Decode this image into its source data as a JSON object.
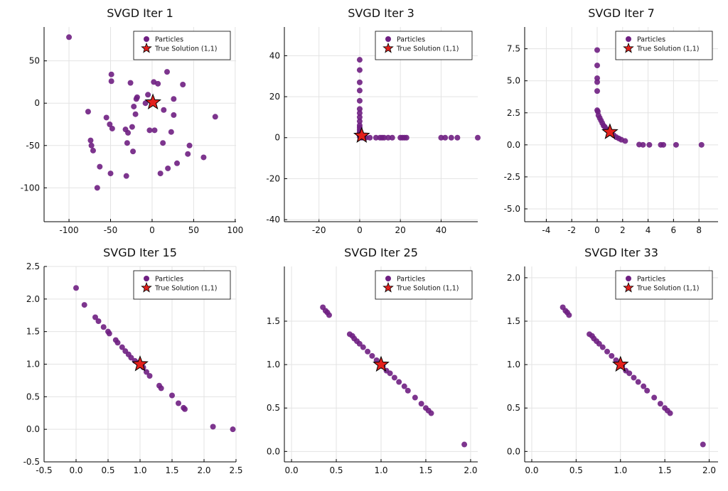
{
  "chart_data": [
    {
      "type": "scatter",
      "title": "SVGD Iter 1",
      "legend": "top-right",
      "grid": true,
      "xlim": [
        -130,
        101
      ],
      "ylim": [
        -140,
        90
      ],
      "xticks": [
        -100,
        -50,
        0,
        50,
        100
      ],
      "yticks": [
        -100,
        -50,
        0,
        50
      ],
      "series": [
        {
          "name": "Particles",
          "color": "#6f1f82",
          "marker": "circle",
          "x": [
            -100,
            -49,
            -49,
            -26,
            18,
            2,
            7,
            37,
            -18,
            -19,
            -5,
            -8,
            14,
            26,
            26,
            -22,
            -20,
            -77,
            -55,
            -51,
            -48,
            -32,
            -29,
            -24,
            -3,
            3,
            23,
            -74,
            -73,
            -71,
            -30,
            -23,
            13,
            45,
            43,
            30,
            19,
            10,
            -50,
            -31,
            -63,
            -66,
            62,
            76
          ],
          "y": [
            78,
            34,
            26,
            24,
            37,
            25,
            23,
            22,
            7,
            5,
            10,
            0,
            -8,
            -14,
            5,
            -4,
            -13,
            -10,
            -17,
            -25,
            -30,
            -31,
            -35,
            -28,
            -32,
            -32,
            -34,
            -44,
            -50,
            -56,
            -47,
            -57,
            -47,
            -50,
            -60,
            -71,
            -77,
            -83,
            -83,
            -86,
            -75,
            -100,
            -64,
            -16
          ]
        },
        {
          "name": "True Solution (1,1)",
          "color": "#e2201c",
          "marker": "star",
          "x": [
            1
          ],
          "y": [
            1
          ]
        }
      ]
    },
    {
      "type": "scatter",
      "title": "SVGD Iter 3",
      "legend": "top-right",
      "grid": true,
      "xlim": [
        -37,
        58
      ],
      "ylim": [
        -41,
        54
      ],
      "xticks": [
        -20,
        0,
        20,
        40
      ],
      "yticks": [
        -40,
        -20,
        0,
        20,
        40
      ],
      "series": [
        {
          "name": "Particles",
          "color": "#6f1f82",
          "marker": "circle",
          "x": [
            0,
            0,
            0,
            0,
            0,
            0,
            0,
            0,
            0,
            0,
            0,
            0,
            0,
            0,
            0,
            0,
            1,
            2,
            3,
            5,
            8,
            10,
            11,
            12,
            14,
            16,
            20,
            21,
            22,
            23,
            40,
            42,
            45,
            48,
            58
          ],
          "y": [
            38,
            33,
            27,
            23,
            18,
            14,
            12,
            10,
            8,
            6,
            5,
            4,
            3,
            2,
            1,
            0.5,
            0,
            0,
            0,
            0,
            0,
            0,
            0,
            0,
            0,
            0,
            0,
            0,
            0,
            0,
            0,
            0,
            0,
            0,
            0
          ]
        },
        {
          "name": "True Solution (1,1)",
          "color": "#e2201c",
          "marker": "star",
          "x": [
            1
          ],
          "y": [
            1
          ]
        }
      ]
    },
    {
      "type": "scatter",
      "title": "SVGD Iter 7",
      "legend": "top-right",
      "grid": true,
      "xlim": [
        -5.7,
        9.5
      ],
      "ylim": [
        -6,
        9.2
      ],
      "xticks": [
        -4,
        -2,
        0,
        2,
        4,
        6,
        8
      ],
      "yticks": [
        {
          "value": -5,
          "label": "-5.0"
        },
        -2.5,
        {
          "value": 0,
          "label": "0.0"
        },
        2.5,
        {
          "value": 5,
          "label": "5.0"
        },
        7.5
      ],
      "series": [
        {
          "name": "Particles",
          "color": "#6f1f82",
          "marker": "circle",
          "x": [
            0,
            0,
            0,
            0,
            0,
            0,
            0.05,
            0.1,
            0.2,
            0.3,
            0.4,
            0.5,
            0.6,
            0.7,
            0.8,
            1.1,
            1.3,
            1.5,
            1.7,
            1.9,
            2.2,
            3.3,
            3.6,
            4.1,
            5.0,
            5.2,
            6.2,
            8.2
          ],
          "y": [
            7.4,
            6.2,
            5.2,
            4.9,
            4.2,
            2.7,
            2.6,
            2.3,
            2.1,
            1.9,
            1.7,
            1.5,
            1.4,
            1.25,
            1.15,
            0.9,
            0.75,
            0.6,
            0.5,
            0.4,
            0.3,
            0.02,
            0,
            0,
            0,
            0,
            0,
            0
          ]
        },
        {
          "name": "True Solution (1,1)",
          "color": "#e2201c",
          "marker": "star",
          "x": [
            1
          ],
          "y": [
            1
          ]
        }
      ]
    },
    {
      "type": "scatter",
      "title": "SVGD Iter 15",
      "legend": "top-right",
      "grid": true,
      "xlim": [
        -0.5,
        2.5
      ],
      "ylim": [
        -0.5,
        2.5
      ],
      "xticks": [
        -0.5,
        {
          "value": 0,
          "label": "0.0"
        },
        0.5,
        {
          "value": 1,
          "label": "1.0"
        },
        1.5,
        {
          "value": 2,
          "label": "2.0"
        },
        2.5
      ],
      "yticks": [
        -0.5,
        {
          "value": 0,
          "label": "0.0"
        },
        0.5,
        {
          "value": 1,
          "label": "1.0"
        },
        1.5,
        {
          "value": 2,
          "label": "2.0"
        },
        2.5
      ],
      "series": [
        {
          "name": "Particles",
          "color": "#6f1f82",
          "marker": "circle",
          "x": [
            0,
            0.13,
            0.3,
            0.35,
            0.43,
            0.5,
            0.52,
            0.62,
            0.65,
            0.72,
            0.77,
            0.82,
            0.86,
            0.92,
            0.97,
            1.05,
            1.1,
            1.15,
            1.3,
            1.33,
            1.5,
            1.6,
            1.68,
            1.7,
            2.14,
            2.45
          ],
          "y": [
            2.17,
            1.91,
            1.72,
            1.66,
            1.57,
            1.5,
            1.47,
            1.37,
            1.33,
            1.26,
            1.2,
            1.15,
            1.1,
            1.05,
            1.02,
            0.95,
            0.88,
            0.82,
            0.67,
            0.63,
            0.52,
            0.4,
            0.33,
            0.31,
            0.04,
            0
          ]
        },
        {
          "name": "True Solution (1,1)",
          "color": "#e2201c",
          "marker": "star",
          "x": [
            1
          ],
          "y": [
            1
          ]
        }
      ]
    },
    {
      "type": "scatter",
      "title": "SVGD Iter 25",
      "legend": "top-right",
      "grid": true,
      "xlim": [
        -0.08,
        2.08
      ],
      "ylim": [
        -0.12,
        2.13
      ],
      "xticks": [
        {
          "value": 0,
          "label": "0.0"
        },
        0.5,
        {
          "value": 1,
          "label": "1.0"
        },
        1.5,
        {
          "value": 2,
          "label": "2.0"
        }
      ],
      "yticks": [
        {
          "value": 0,
          "label": "0.0"
        },
        0.5,
        {
          "value": 1,
          "label": "1.0"
        },
        1.5
      ],
      "series": [
        {
          "name": "Particles",
          "color": "#6f1f82",
          "marker": "circle",
          "x": [
            0.35,
            0.38,
            0.4,
            0.42,
            0.65,
            0.68,
            0.7,
            0.73,
            0.76,
            0.8,
            0.85,
            0.9,
            0.95,
            1.02,
            1.06,
            1.1,
            1.15,
            1.2,
            1.26,
            1.3,
            1.38,
            1.45,
            1.5,
            1.53,
            1.56,
            1.93
          ],
          "y": [
            1.66,
            1.62,
            1.6,
            1.57,
            1.35,
            1.33,
            1.3,
            1.27,
            1.24,
            1.2,
            1.15,
            1.1,
            1.05,
            0.98,
            0.93,
            0.9,
            0.85,
            0.8,
            0.75,
            0.7,
            0.62,
            0.55,
            0.5,
            0.47,
            0.44,
            0.08
          ]
        },
        {
          "name": "True Solution (1,1)",
          "color": "#e2201c",
          "marker": "star",
          "x": [
            1
          ],
          "y": [
            1
          ]
        }
      ]
    },
    {
      "type": "scatter",
      "title": "SVGD Iter 33",
      "legend": "top-right",
      "grid": true,
      "xlim": [
        -0.08,
        2.1
      ],
      "ylim": [
        -0.12,
        2.13
      ],
      "xticks": [
        {
          "value": 0,
          "label": "0.0"
        },
        0.5,
        {
          "value": 1,
          "label": "1.0"
        },
        1.5,
        {
          "value": 2,
          "label": "2.0"
        }
      ],
      "yticks": [
        {
          "value": 0,
          "label": "0.0"
        },
        0.5,
        {
          "value": 1,
          "label": "1.0"
        },
        1.5,
        {
          "value": 2,
          "label": "2.0"
        }
      ],
      "series": [
        {
          "name": "Particles",
          "color": "#6f1f82",
          "marker": "circle",
          "x": [
            0.35,
            0.38,
            0.4,
            0.42,
            0.65,
            0.68,
            0.7,
            0.73,
            0.76,
            0.8,
            0.85,
            0.9,
            0.95,
            1.02,
            1.06,
            1.1,
            1.15,
            1.2,
            1.26,
            1.3,
            1.38,
            1.45,
            1.5,
            1.53,
            1.56,
            1.93
          ],
          "y": [
            1.66,
            1.62,
            1.6,
            1.57,
            1.35,
            1.33,
            1.3,
            1.27,
            1.24,
            1.2,
            1.15,
            1.1,
            1.05,
            0.98,
            0.93,
            0.9,
            0.85,
            0.8,
            0.75,
            0.7,
            0.62,
            0.55,
            0.5,
            0.47,
            0.44,
            0.08
          ]
        },
        {
          "name": "True Solution (1,1)",
          "color": "#e2201c",
          "marker": "star",
          "x": [
            1
          ],
          "y": [
            1
          ]
        }
      ]
    }
  ]
}
